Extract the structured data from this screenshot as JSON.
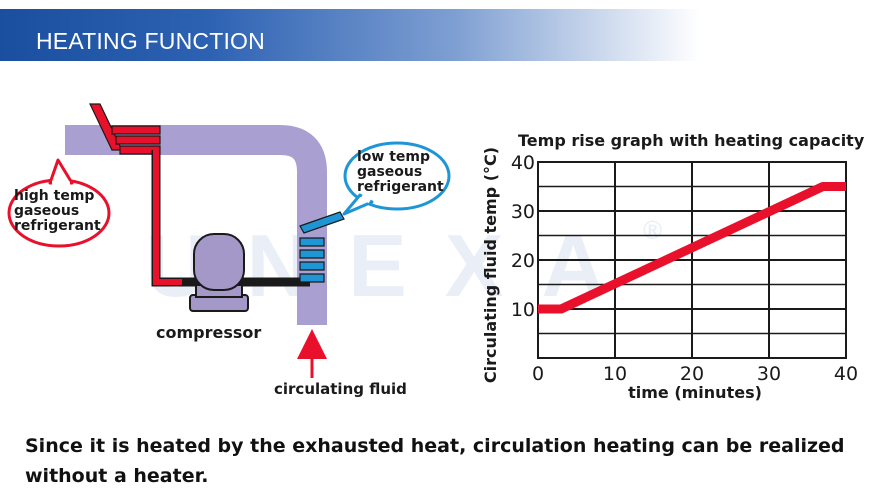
{
  "header": {
    "title": "HEATING FUNCTION"
  },
  "diagram": {
    "high_temp_label": [
      "high temp",
      "gaseous",
      "refrigerant"
    ],
    "low_temp_label": [
      "low temp",
      "gaseous",
      "refrigerant"
    ],
    "compressor_label": "compressor",
    "fluid_label": "circulating fluid",
    "colors": {
      "pipe": "#a99fd0",
      "hot": "#e8102a",
      "cold": "#1e96d6",
      "compressor": "#a498c9"
    }
  },
  "watermark": {
    "text": "UNEXA",
    "mark": "®"
  },
  "chart_data": {
    "type": "line",
    "title": "Temp rise graph with heating capacity",
    "xlabel": "time (minutes)",
    "ylabel": "Circulating fluid temp (°C)",
    "xlim": [
      0,
      40
    ],
    "ylim": [
      0,
      40
    ],
    "xticks": [
      "0",
      "10",
      "20",
      "30",
      "40"
    ],
    "yticks": [
      "10",
      "20",
      "30",
      "40"
    ],
    "grid": true,
    "series": [
      {
        "color": "#e8102a",
        "x": [
          0,
          3,
          37,
          40
        ],
        "y": [
          10,
          10,
          35,
          35
        ]
      }
    ]
  },
  "footer": {
    "text": "Since it is heated by the exhausted heat, circulation heating can be realized without a heater."
  }
}
